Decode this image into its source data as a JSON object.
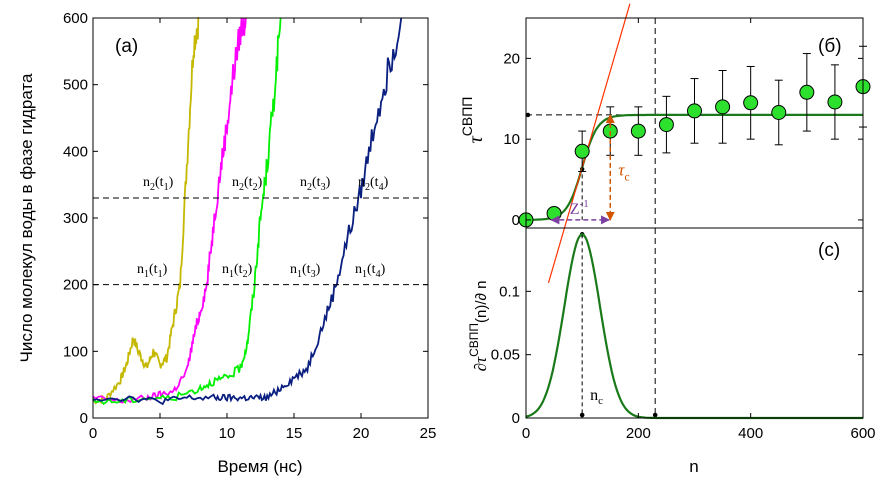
{
  "panel_labels": {
    "a": "(a)",
    "b": "(б)",
    "c": "(c)"
  },
  "colors": {
    "series_1": "#c4b800",
    "series_2": "#ff00ff",
    "series_3": "#00f000",
    "series_4": "#0a1f80",
    "fit": "#1a7a1a",
    "marker": "#2ee02e",
    "tangent": "#ff3300",
    "tau_c": "#d35400",
    "z_arrow": "#7b3fa0"
  },
  "chart_data": [
    {
      "type": "line",
      "panel": "a",
      "xlabel": "Время (нс)",
      "ylabel": "Число молекул воды в фазе гидрата",
      "xlim": [
        0,
        25
      ],
      "ylim": [
        0,
        600
      ],
      "xticks": [
        0,
        5,
        10,
        15,
        20,
        25
      ],
      "yticks": [
        0,
        100,
        200,
        300,
        400,
        500,
        600
      ],
      "grid": false,
      "series": [
        {
          "color": "#c4b800",
          "x": [
            0,
            1,
            2,
            2.5,
            3,
            3.5,
            4,
            4.5,
            5,
            5.5,
            6,
            6.5,
            7,
            7.5,
            7.9
          ],
          "y": [
            25,
            30,
            55,
            80,
            120,
            95,
            75,
            100,
            80,
            90,
            145,
            200,
            380,
            560,
            600
          ]
        },
        {
          "color": "#ff00ff",
          "x": [
            0,
            2,
            4,
            5,
            6,
            7,
            7.5,
            8,
            8.5,
            9,
            9.5,
            10,
            10.5,
            11,
            11.4
          ],
          "y": [
            30,
            25,
            30,
            35,
            40,
            70,
            120,
            160,
            200,
            290,
            370,
            440,
            520,
            580,
            600
          ]
        },
        {
          "color": "#00f000",
          "x": [
            0,
            2,
            4,
            6,
            8,
            9,
            10,
            11,
            11.5,
            12,
            12.5,
            13,
            13.5,
            14
          ],
          "y": [
            25,
            25,
            30,
            30,
            45,
            55,
            60,
            75,
            110,
            190,
            300,
            380,
            480,
            600
          ]
        },
        {
          "color": "#0a1f80",
          "x": [
            0,
            3,
            5,
            7,
            9,
            10,
            11,
            12,
            13,
            14,
            15,
            16,
            17,
            18,
            19,
            20,
            21,
            22,
            23
          ],
          "y": [
            30,
            30,
            25,
            30,
            30,
            30,
            30,
            30,
            30,
            45,
            60,
            75,
            130,
            190,
            270,
            340,
            440,
            520,
            600
          ]
        }
      ],
      "hlines": [
        200,
        330
      ],
      "labels_upper": [
        {
          "base": "n",
          "sub": "2",
          "arg": "t",
          "argsub": "1"
        },
        {
          "base": "n",
          "sub": "2",
          "arg": "t",
          "argsub": "2"
        },
        {
          "base": "n",
          "sub": "2",
          "arg": "t",
          "argsub": "3"
        },
        {
          "base": "n",
          "sub": "2",
          "arg": "t",
          "argsub": "4"
        }
      ],
      "labels_lower": [
        {
          "base": "n",
          "sub": "1",
          "arg": "t",
          "argsub": "1"
        },
        {
          "base": "n",
          "sub": "1",
          "arg": "t",
          "argsub": "2"
        },
        {
          "base": "n",
          "sub": "1",
          "arg": "t",
          "argsub": "3"
        },
        {
          "base": "n",
          "sub": "1",
          "arg": "t",
          "argsub": "4"
        }
      ]
    },
    {
      "type": "scatter",
      "panel": "b",
      "ylabel": {
        "base": "τ",
        "sup": "СВПП"
      },
      "xlim": [
        0,
        600
      ],
      "ylim": [
        -1,
        25
      ],
      "yticks": [
        0,
        10,
        20
      ],
      "grid": false,
      "points": [
        {
          "x": 0,
          "y": 0,
          "err": 0
        },
        {
          "x": 50,
          "y": 0.8,
          "err": 0.4
        },
        {
          "x": 100,
          "y": 8.5,
          "err": 2.5
        },
        {
          "x": 150,
          "y": 11,
          "err": 3
        },
        {
          "x": 200,
          "y": 11,
          "err": 3
        },
        {
          "x": 250,
          "y": 11.8,
          "err": 3.5
        },
        {
          "x": 300,
          "y": 13.5,
          "err": 4
        },
        {
          "x": 350,
          "y": 14,
          "err": 4.5
        },
        {
          "x": 400,
          "y": 14.5,
          "err": 4.5
        },
        {
          "x": 450,
          "y": 13.3,
          "err": 4
        },
        {
          "x": 500,
          "y": 15.8,
          "err": 4.8
        },
        {
          "x": 550,
          "y": 14.6,
          "err": 4.6
        },
        {
          "x": 600,
          "y": 16.5,
          "err": 5
        }
      ],
      "fit": {
        "plateau": 13,
        "center": 100,
        "width": 30
      },
      "tau_label": {
        "base": "τ",
        "sub": "c"
      },
      "z_label": {
        "base": "Z",
        "sup": "-1"
      }
    },
    {
      "type": "line",
      "panel": "c",
      "xlabel": "n",
      "ylabel": {
        "pre": "∂",
        "base": "τ",
        "sup": "СВПП",
        "post": "(n)/∂ n"
      },
      "xlim": [
        0,
        600
      ],
      "ylim": [
        0,
        0.15
      ],
      "xticks": [
        0,
        200,
        400,
        600
      ],
      "yticks": [
        0,
        0.05,
        0.1
      ],
      "ytick_labels": [
        "0",
        "0.05",
        "0.1"
      ],
      "grid": false,
      "peak": {
        "x": 100,
        "y": 0.145
      },
      "nc_label": {
        "base": "n",
        "sub": "c"
      },
      "vline_x": 230
    }
  ]
}
